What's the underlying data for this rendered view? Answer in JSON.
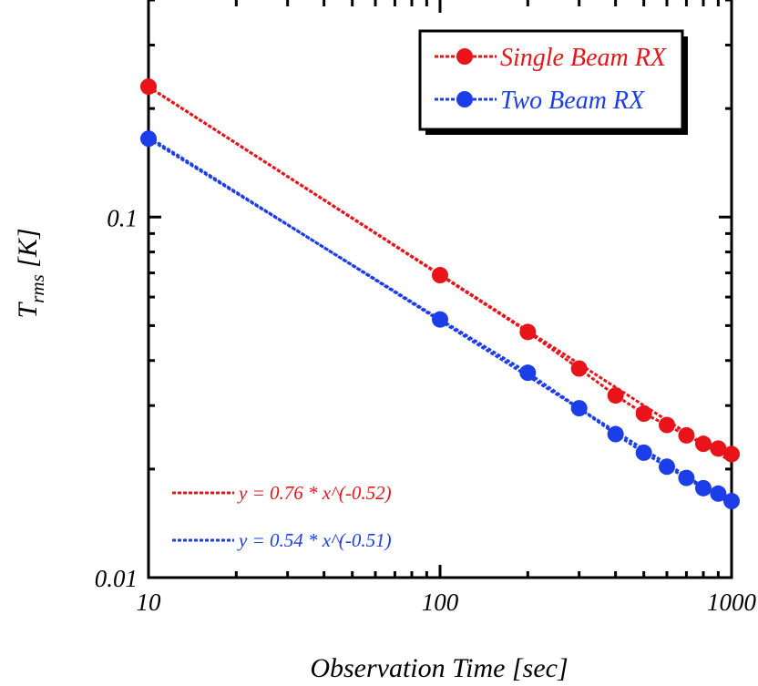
{
  "chart_data": {
    "type": "line",
    "xscale": "log",
    "yscale": "log",
    "xlim": [
      10,
      1000
    ],
    "ylim": [
      0.01,
      0.4
    ],
    "xlabel": "Observation Time [sec]",
    "ylabel": {
      "main": "T",
      "sub": "rms",
      "unit": " [K]"
    },
    "x_ticks": [
      {
        "value": 10,
        "label": "10"
      },
      {
        "value": 100,
        "label": "100"
      },
      {
        "value": 1000,
        "label": "1000"
      }
    ],
    "y_ticks": [
      {
        "value": 0.01,
        "label": "0.01"
      },
      {
        "value": 0.1,
        "label": "0.1"
      }
    ],
    "legend_position": "top-right",
    "series": [
      {
        "name": "Single Beam RX",
        "color": "#e8141a",
        "x": [
          10,
          100,
          200,
          300,
          400,
          500,
          600,
          700,
          800,
          900,
          1000
        ],
        "y": [
          0.23,
          0.069,
          0.048,
          0.038,
          0.032,
          0.0285,
          0.0265,
          0.0248,
          0.0235,
          0.0228,
          0.022
        ]
      },
      {
        "name": "Two Beam RX",
        "color": "#1c3ee8",
        "x": [
          10,
          100,
          200,
          300,
          400,
          500,
          600,
          700,
          800,
          900,
          1000
        ],
        "y": [
          0.165,
          0.052,
          0.037,
          0.0295,
          0.025,
          0.0222,
          0.0203,
          0.0189,
          0.0177,
          0.0171,
          0.0163
        ]
      }
    ],
    "fits": [
      {
        "label": "y = 0.76 * x^(-0.52)",
        "color": "#e8141a",
        "a": 0.76,
        "b": -0.52
      },
      {
        "label": "y = 0.54 * x^(-0.51)",
        "color": "#1c3ee8",
        "a": 0.54,
        "b": -0.51
      }
    ]
  }
}
